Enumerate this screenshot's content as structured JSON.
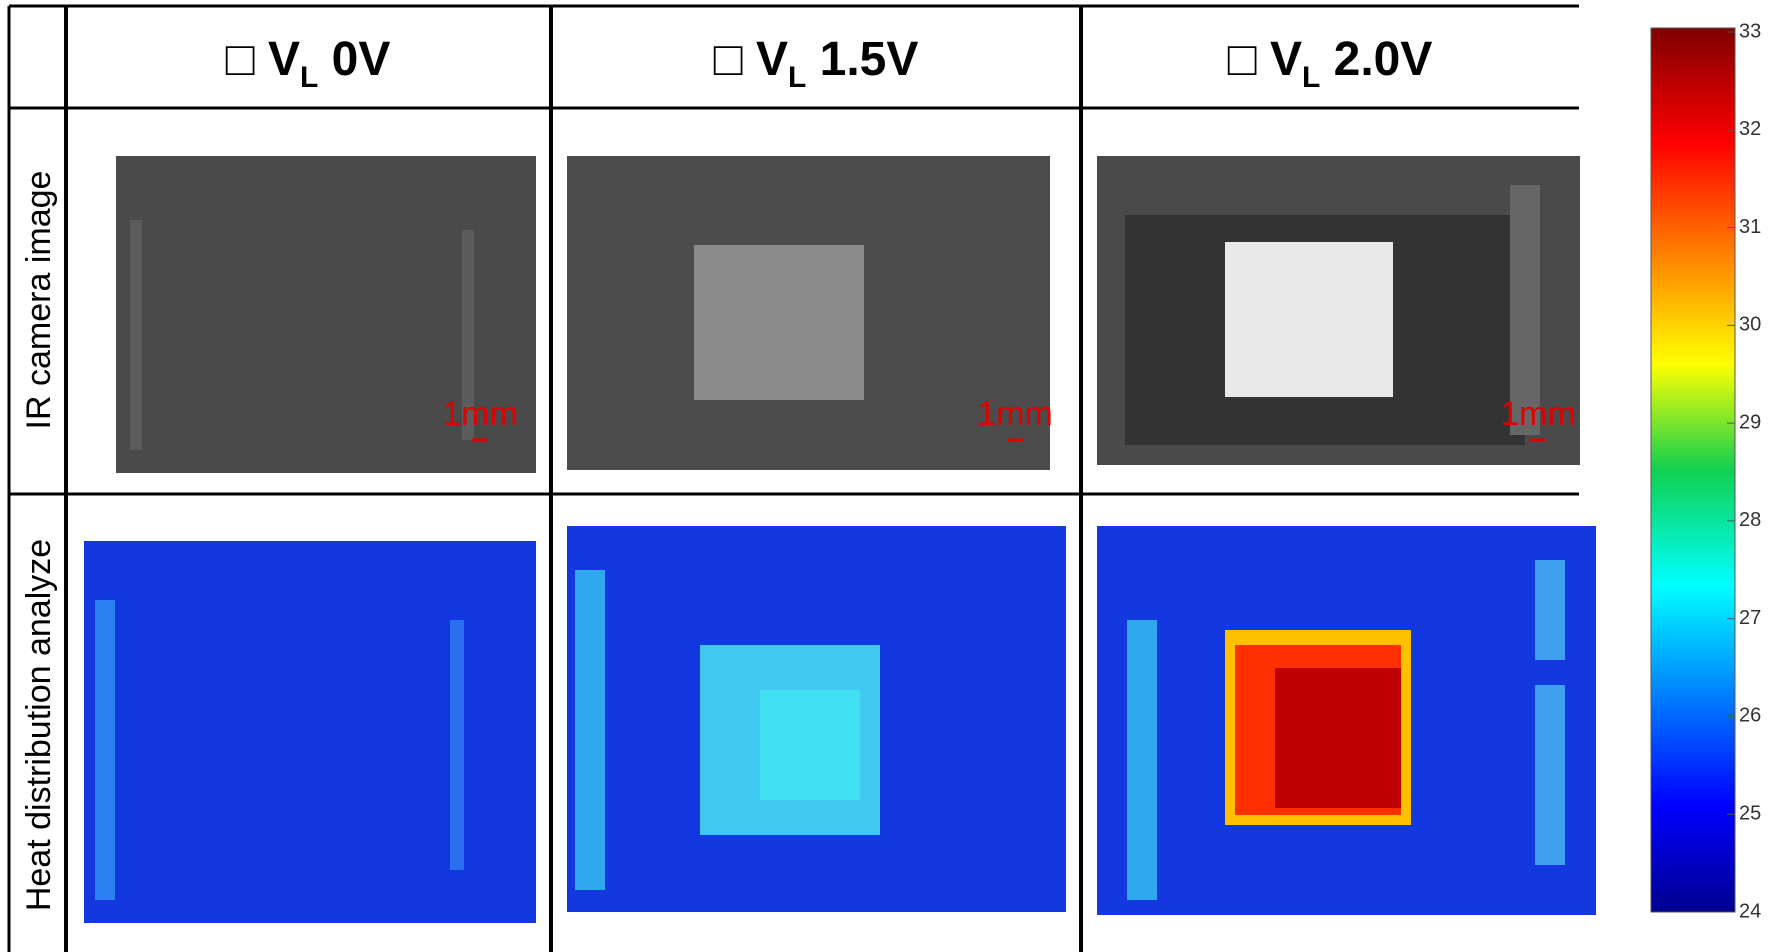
{
  "columns": [
    {
      "prefix": "□ V",
      "sub": "L",
      "label": " 0V"
    },
    {
      "prefix": "□ V",
      "sub": "L",
      "label": " 1.5V"
    },
    {
      "prefix": "□ V",
      "sub": "L",
      "label": " 2.0V"
    }
  ],
  "rows": [
    "IR camera image",
    "Heat distribution analyze"
  ],
  "scale_bar": "1mm",
  "colorbar": {
    "lim": [
      24,
      33
    ],
    "ticks": [
      24,
      25,
      26,
      27,
      28,
      29,
      30,
      31,
      32,
      33
    ]
  }
}
